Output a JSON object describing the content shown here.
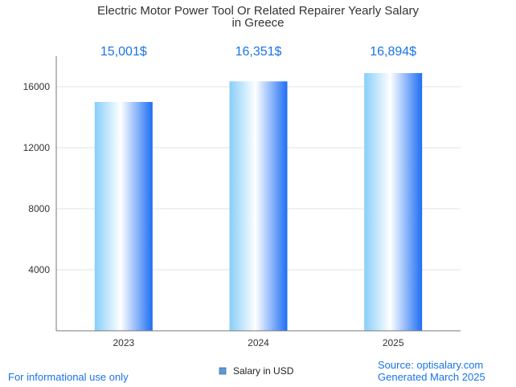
{
  "chart_data": {
    "type": "bar",
    "title": [
      "Electric Motor Power Tool Or Related Repairer Yearly Salary",
      "in Greece"
    ],
    "categories": [
      "2023",
      "2024",
      "2025"
    ],
    "values": [
      15001,
      16351,
      16894
    ],
    "value_labels": [
      "15,001$",
      "16,351$",
      "16,894$"
    ],
    "ylim": [
      0,
      18000
    ],
    "yticks": [
      4000,
      8000,
      12000,
      16000
    ],
    "ytick_labels": [
      "4000",
      "8000",
      "12000",
      "16000"
    ],
    "grid": true,
    "legend": {
      "placement": "bottom-center",
      "label": "Salary in USD",
      "color": "#5b9bd5"
    },
    "bar_gradient": [
      "#87cefa",
      "#ffffff",
      "#1e6ef5"
    ],
    "label_color": "#1a73e8"
  },
  "footer": {
    "left": "For informational use only",
    "source": "Source: optisalary.com",
    "generated": "Generated March 2025"
  }
}
